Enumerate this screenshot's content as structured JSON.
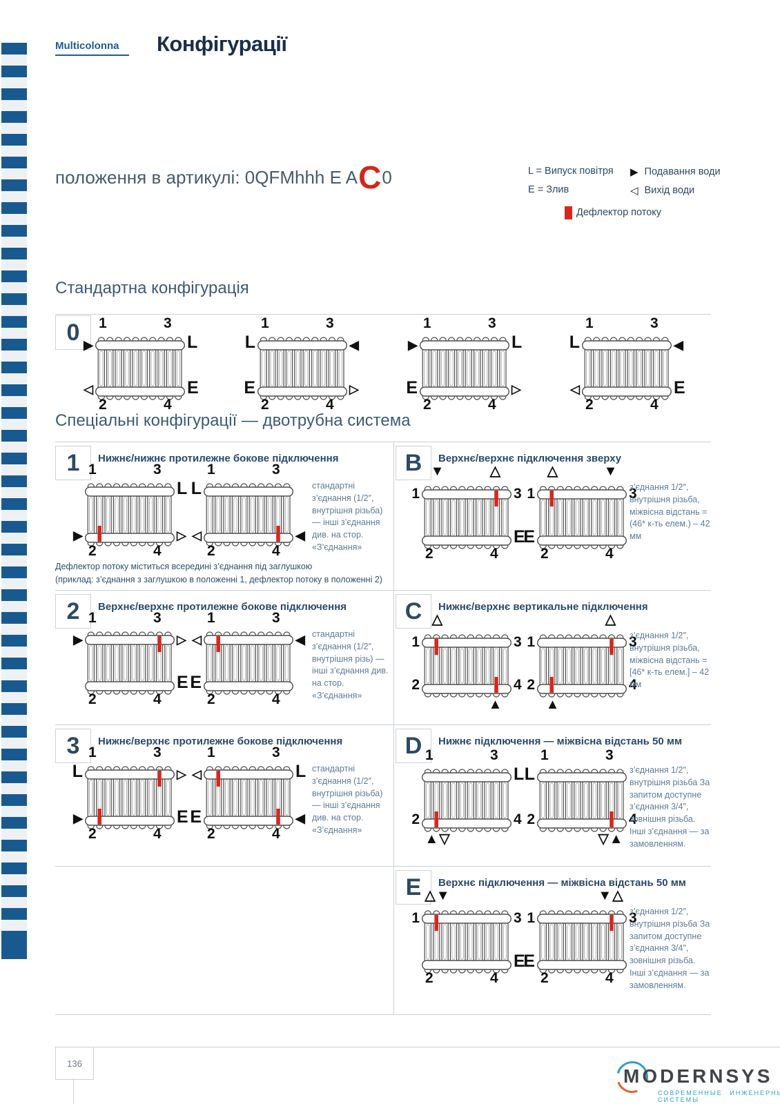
{
  "page": {
    "brand": "Multicolonna",
    "title": "Конфігурації",
    "article_prefix": "положення в артикулі: 0QFMhhh E A",
    "article_highlight": "C",
    "article_suffix": "0",
    "page_number": "136"
  },
  "colors": {
    "brand_blue": "#1c5e94",
    "accent_red": "#d6281e",
    "navy_text": "#29496b"
  },
  "legend": {
    "air_vent": "L = Випуск повітря",
    "drain": "E = Злив",
    "supply_icon": "▶",
    "supply": "Подавання води",
    "outlet_icon": "◁",
    "outlet": "Вихід води",
    "deflector": "Дефлектор потоку"
  },
  "standard": {
    "title": "Стандартна конфігурація",
    "badge": "0",
    "diagrams": [
      {
        "marks": {
          "tl": "▶",
          "tr": "L",
          "bl": "◁",
          "br": "E"
        },
        "defl": []
      },
      {
        "marks": {
          "tl": "L",
          "tr": "◀",
          "bl": "E",
          "br": "▷"
        },
        "defl": []
      },
      {
        "marks": {
          "tl": "▶",
          "tr": "L",
          "bl": "E",
          "br": "▷"
        },
        "defl": []
      },
      {
        "marks": {
          "tl": "L",
          "tr": "◀",
          "bl": "◁",
          "br": "E"
        },
        "defl": []
      }
    ]
  },
  "special": {
    "title": "Спеціальні конфігурації — двотрубна система",
    "rows": [
      {
        "left": {
          "badge": "1",
          "title": "Нижнє/нижнє протилежне бокове підключення",
          "note": "стандартні з’єднання (1/2″, внутрішня різьба) — інші з’єднання див. на стор. «З’єднання»",
          "footnote": [
            "Дефлектор потоку міститься всередині з’єднання під заглушкою",
            "(приклад: з’єднання з заглушкою в положенні 1, дефлектор потоку в положенні 2)"
          ],
          "diagrams": [
            {
              "marks": {
                "tr": "L",
                "bl": "▶",
                "br": "▷"
              },
              "defl": [
                "b1"
              ]
            },
            {
              "marks": {
                "tl": "L",
                "bl": "◁",
                "br": "◀"
              },
              "defl": [
                "b9"
              ]
            }
          ]
        },
        "right": {
          "badge": "B",
          "title": "Верхнє/верхнє підключення зверху",
          "note": "з’єднання 1/2″, внутрішня різьба, міжвісна відстань = (46* к-ть елем.) – 42 мм",
          "diagrams": [
            {
              "marks": {
                "al": "▼",
                "ar": "△",
                "br": "E"
              },
              "numpos": {
                "n1": "side",
                "n3": "side"
              },
              "defl": [
                "t9"
              ]
            },
            {
              "marks": {
                "al": "△",
                "ar": "▼",
                "bl": "E"
              },
              "numpos": {
                "n1": "side",
                "n3": "side"
              },
              "defl": [
                "t1"
              ]
            }
          ]
        }
      },
      {
        "left": {
          "badge": "2",
          "title": "Верхнє/верхнє протилежне бокове підключення",
          "note": "стандартні з’єднання (1/2″, внутрішня різь) — інші з’єднання див. на стор. «З’єднання»",
          "diagrams": [
            {
              "marks": {
                "tl": "▶",
                "tr": "▷",
                "br": "E"
              },
              "defl": [
                "t9"
              ]
            },
            {
              "marks": {
                "tl": "◁",
                "tr": "◀",
                "bl": "E"
              },
              "defl": [
                "t1"
              ]
            }
          ]
        },
        "right": {
          "badge": "C",
          "title": "Нижнє/верхнє вертикальне підключення",
          "note": "з’єднання 1/2″, внутрішня різьба, міжвісна відстань = [46* к-ть елем.] – 42 мм",
          "diagrams": [
            {
              "marks": {
                "al": "△",
                "ur": "▲"
              },
              "numpos": {
                "n1": "side",
                "n2": "side",
                "n3": "side",
                "n4": "side"
              },
              "defl": [
                "t1",
                "b9"
              ]
            },
            {
              "marks": {
                "ar": "△",
                "ul": "▲"
              },
              "numpos": {
                "n1": "side",
                "n2": "side",
                "n3": "side",
                "n4": "side"
              },
              "defl": [
                "t9",
                "b1"
              ]
            }
          ]
        }
      },
      {
        "left": {
          "badge": "3",
          "title": "Нижнє/верхнє протилежне бокове підключення",
          "note": "стандартні з’єднання (1/2″, внутрішня різьба) — інші з’єднання див. на стор. «З’єднання»",
          "diagrams": [
            {
              "marks": {
                "tl": "L",
                "tr": "▷",
                "bl": "▶",
                "br": "E"
              },
              "defl": [
                "t9",
                "b1"
              ]
            },
            {
              "marks": {
                "tl": "◁",
                "tr": "L",
                "bl": "E",
                "br": "◀"
              },
              "defl": [
                "t1",
                "b9"
              ]
            }
          ]
        },
        "right": {
          "badge": "D",
          "title": "Нижнє підключення — міжвісна відстань 50 мм",
          "note": "з’єднання 1/2″, внутрішня різьба За запитом доступне з’єднання 3/4″, зовнішня різьба. Інші з’єднання — за замовленням.",
          "diagrams": [
            {
              "marks": {
                "tr": "L",
                "ul": "▲▽"
              },
              "numpos": {
                "n2": "side",
                "n4": "side"
              },
              "defl": [
                "b1"
              ]
            },
            {
              "marks": {
                "tl": "L",
                "ur": "▽▲"
              },
              "numpos": {
                "n2": "side",
                "n4": "side"
              },
              "defl": [
                "b9"
              ]
            }
          ]
        }
      },
      {
        "left": null,
        "right": {
          "badge": "E",
          "title": "Верхнє підключення — міжвісна відстань 50 мм",
          "note": "з’єднання 1/2″, внутрішня різьба За запитом доступне з’єднання 3/4″, зовнішня різьба. Інші з’єднання — за замовленням.",
          "diagrams": [
            {
              "marks": {
                "al": "△▼",
                "br": "E"
              },
              "numpos": {
                "n1": "side",
                "n3": "side"
              },
              "defl": [
                "t1"
              ]
            },
            {
              "marks": {
                "ar": "▼△",
                "bl": "E"
              },
              "numpos": {
                "n1": "side",
                "n3": "side"
              },
              "defl": [
                "t9"
              ]
            }
          ]
        }
      }
    ]
  },
  "footer_logo": {
    "name": "MODERNSYS",
    "tagline": "СОВРЕМЕННЫЕ ИНЖЕНЕРНЫЕ СИСТЕМЫ"
  }
}
